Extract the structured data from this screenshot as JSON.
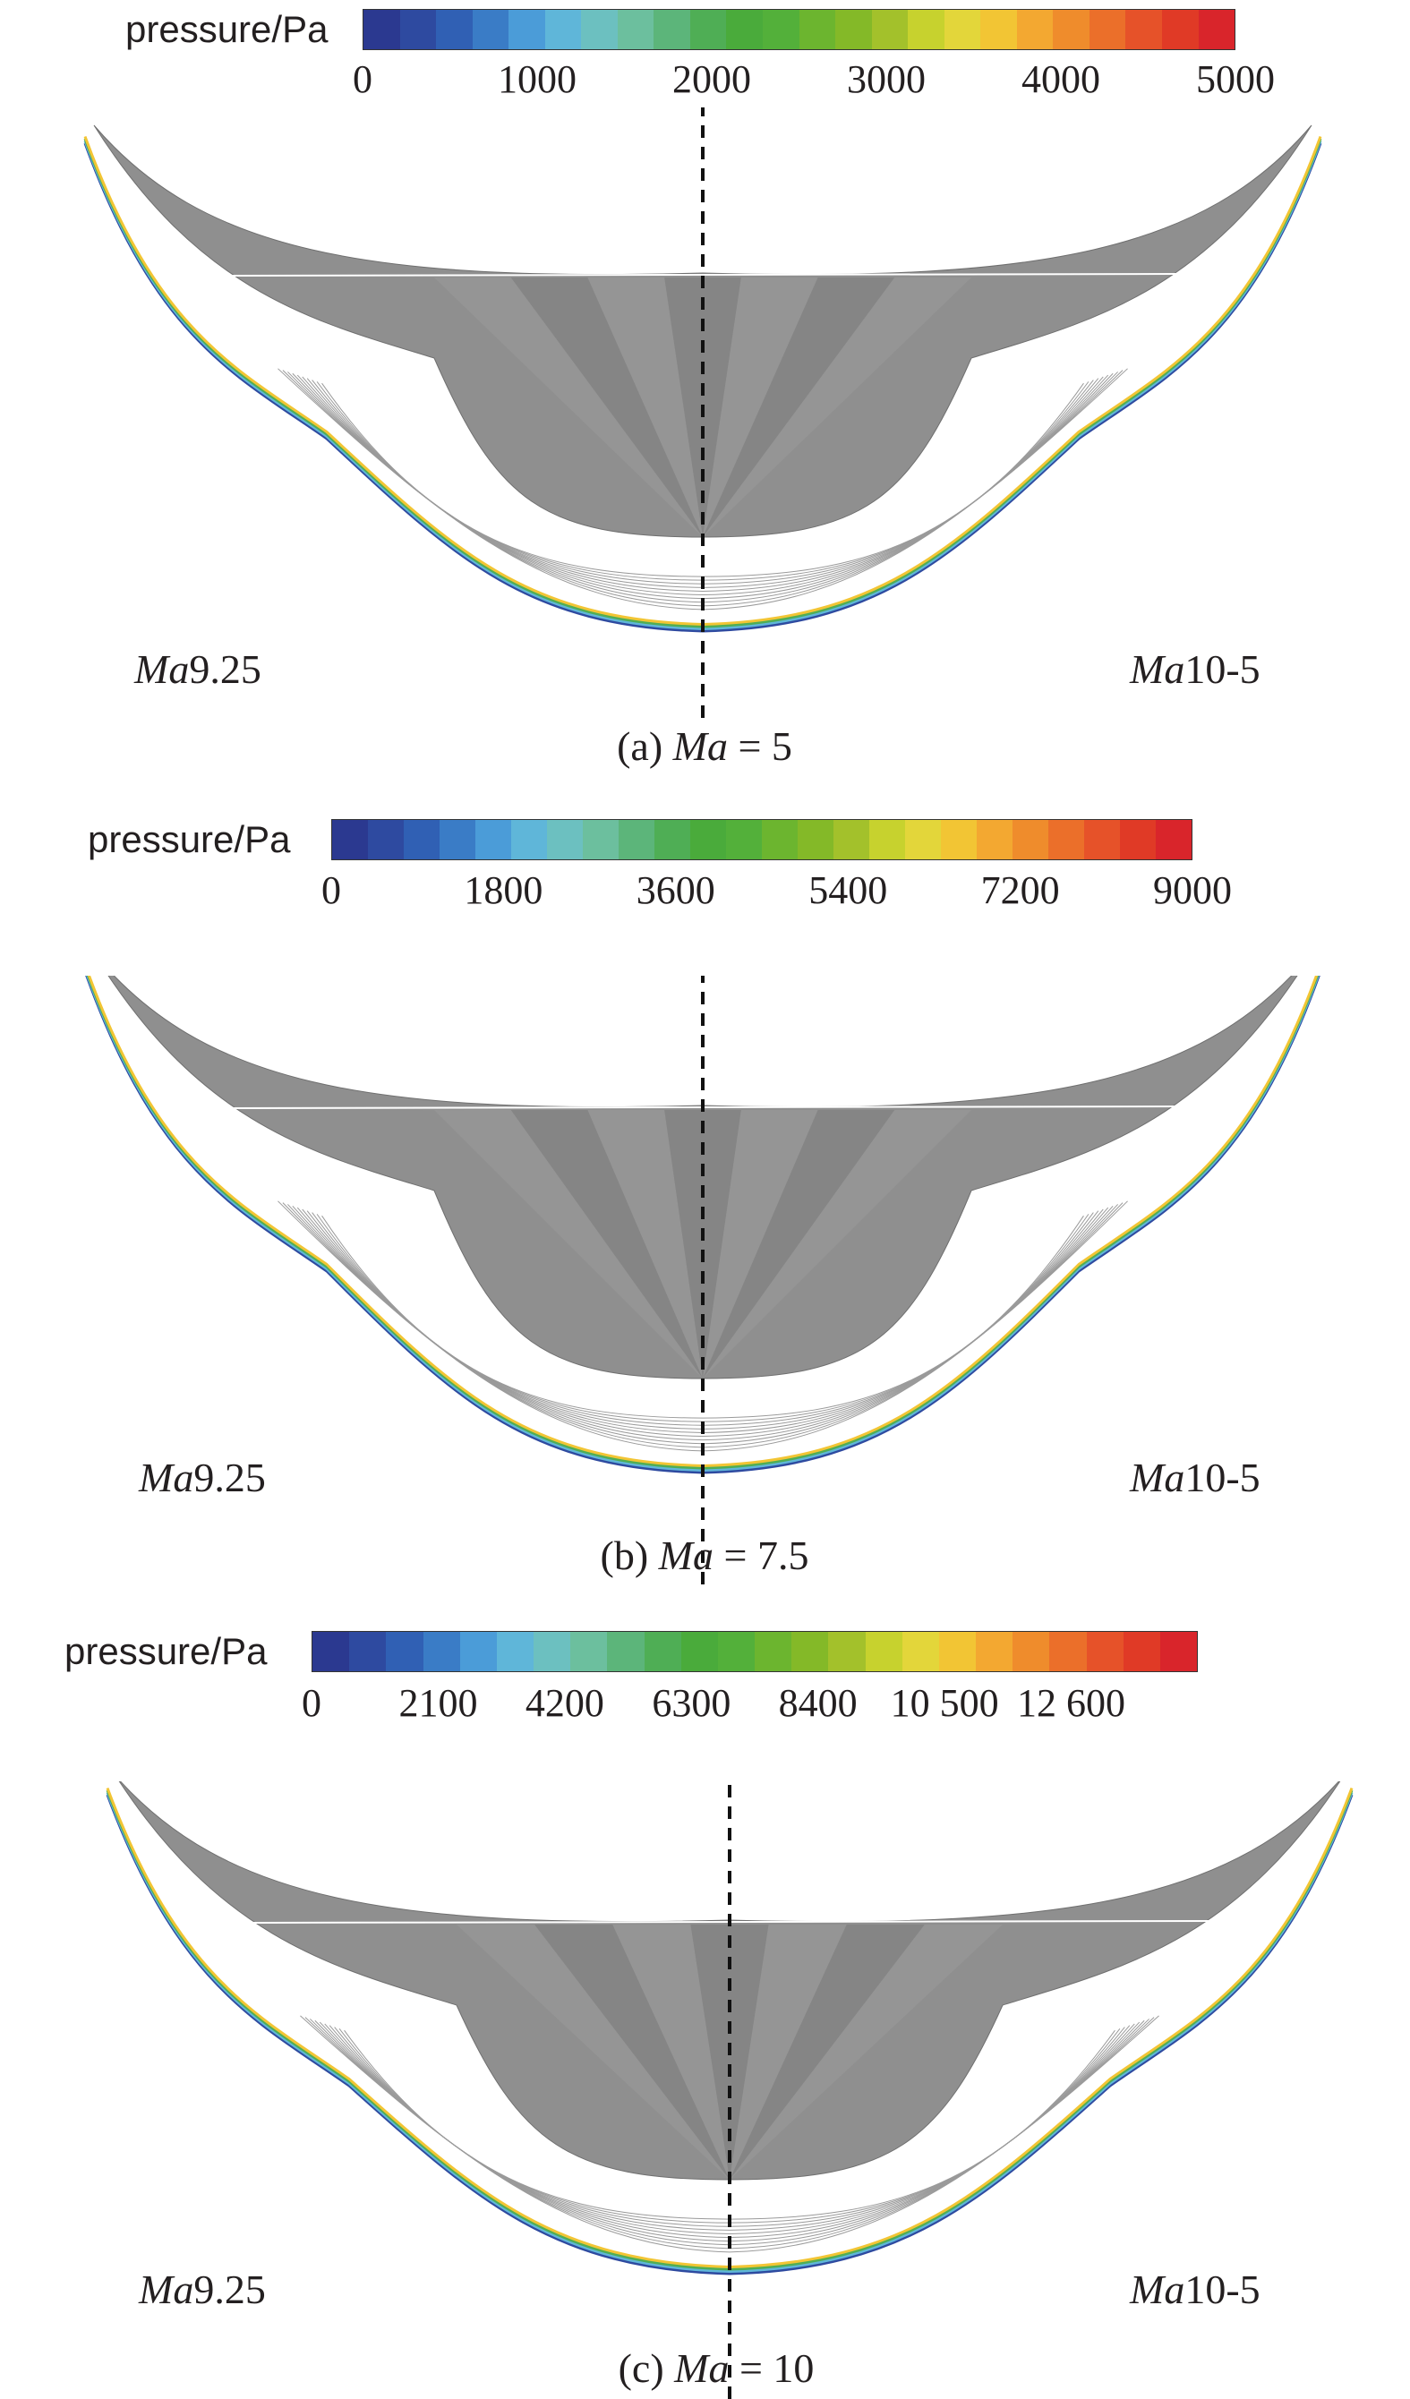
{
  "panels": [
    {
      "colorbar_title": "pressure/Pa",
      "ticks": [
        "0",
        "1000",
        "2000",
        "3000",
        "4000",
        "5000"
      ],
      "tick_positions": [
        0,
        0.2,
        0.4,
        0.6,
        0.8,
        1.0
      ],
      "left_label_italic": "Ma",
      "left_label_rest": "9.25",
      "right_label_italic": "Ma",
      "right_label_rest": "10-5",
      "caption_prefix": "(a) ",
      "caption_italic": "Ma",
      "caption_suffix": " = 5"
    },
    {
      "colorbar_title": "pressure/Pa",
      "ticks": [
        "0",
        "1800",
        "3600",
        "5400",
        "7200",
        "9000"
      ],
      "tick_positions": [
        0,
        0.2,
        0.4,
        0.6,
        0.8,
        1.0
      ],
      "left_label_italic": "Ma",
      "left_label_rest": "9.25",
      "right_label_italic": "Ma",
      "right_label_rest": "10-5",
      "caption_prefix": "(b) ",
      "caption_italic": "Ma",
      "caption_suffix": " = 7.5"
    },
    {
      "colorbar_title": "pressure/Pa",
      "ticks": [
        "0",
        "2100",
        "4200",
        "6300",
        "8400",
        "10 500",
        "12 600"
      ],
      "tick_positions": [
        0,
        0.1429,
        0.2857,
        0.4286,
        0.5714,
        0.7143,
        0.8571
      ],
      "left_label_italic": "Ma",
      "left_label_rest": "9.25",
      "right_label_italic": "Ma",
      "right_label_rest": "10-5",
      "caption_prefix": "(c) ",
      "caption_italic": "Ma",
      "caption_suffix": " = 10"
    }
  ],
  "colormap": [
    "#2b3990",
    "#2e4aa0",
    "#3060b4",
    "#3a7cc6",
    "#4b9cd8",
    "#5fb6d9",
    "#6cc0c0",
    "#6cbf9e",
    "#5cb57a",
    "#4fae55",
    "#4aab3b",
    "#53b03a",
    "#6cb52f",
    "#84b928",
    "#a3c12b",
    "#c7d22e",
    "#e3d63a",
    "#f2c534",
    "#f3a831",
    "#ef8c2c",
    "#eb6f2a",
    "#e65229",
    "#e03a26",
    "#d9252b"
  ]
}
